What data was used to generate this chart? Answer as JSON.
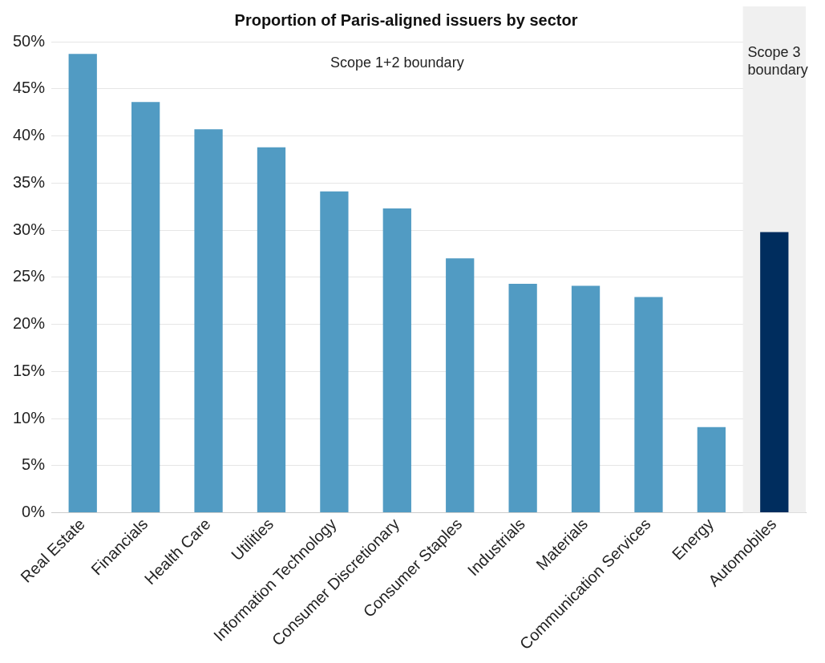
{
  "chart_data": {
    "type": "bar",
    "title": "Proportion of Paris-aligned issuers by sector",
    "categories": [
      "Real Estate",
      "Financials",
      "Health Care",
      "Utilities",
      "Information Technology",
      "Consumer Discretionary",
      "Consumer Staples",
      "Industrials",
      "Materials",
      "Communication Services",
      "Energy",
      "Automobiles"
    ],
    "values": [
      48.7,
      43.6,
      40.7,
      38.8,
      34.1,
      32.3,
      27.0,
      24.3,
      24.1,
      22.9,
      9.1,
      29.8
    ],
    "colors": [
      "#519bc3",
      "#519bc3",
      "#519bc3",
      "#519bc3",
      "#519bc3",
      "#519bc3",
      "#519bc3",
      "#519bc3",
      "#519bc3",
      "#519bc3",
      "#519bc3",
      "#002d5e"
    ],
    "ylim": [
      0,
      50
    ],
    "yticks": [
      {
        "value": 0,
        "label": "0%"
      },
      {
        "value": 5,
        "label": "5%"
      },
      {
        "value": 10,
        "label": "10%"
      },
      {
        "value": 15,
        "label": "15%"
      },
      {
        "value": 20,
        "label": "20%"
      },
      {
        "value": 25,
        "label": "25%"
      },
      {
        "value": 30,
        "label": "30%"
      },
      {
        "value": 35,
        "label": "35%"
      },
      {
        "value": 40,
        "label": "40%"
      },
      {
        "value": 45,
        "label": "45%"
      },
      {
        "value": 50,
        "label": "50%"
      }
    ],
    "grid": "y",
    "legend": false,
    "bands": [
      {
        "axis": "x",
        "from": "Automobiles",
        "to": "Automobiles",
        "label": "Scope 3 boundary",
        "color": "#f0f0f0"
      }
    ],
    "annotations": [
      "Scope 1+2 boundary"
    ]
  }
}
